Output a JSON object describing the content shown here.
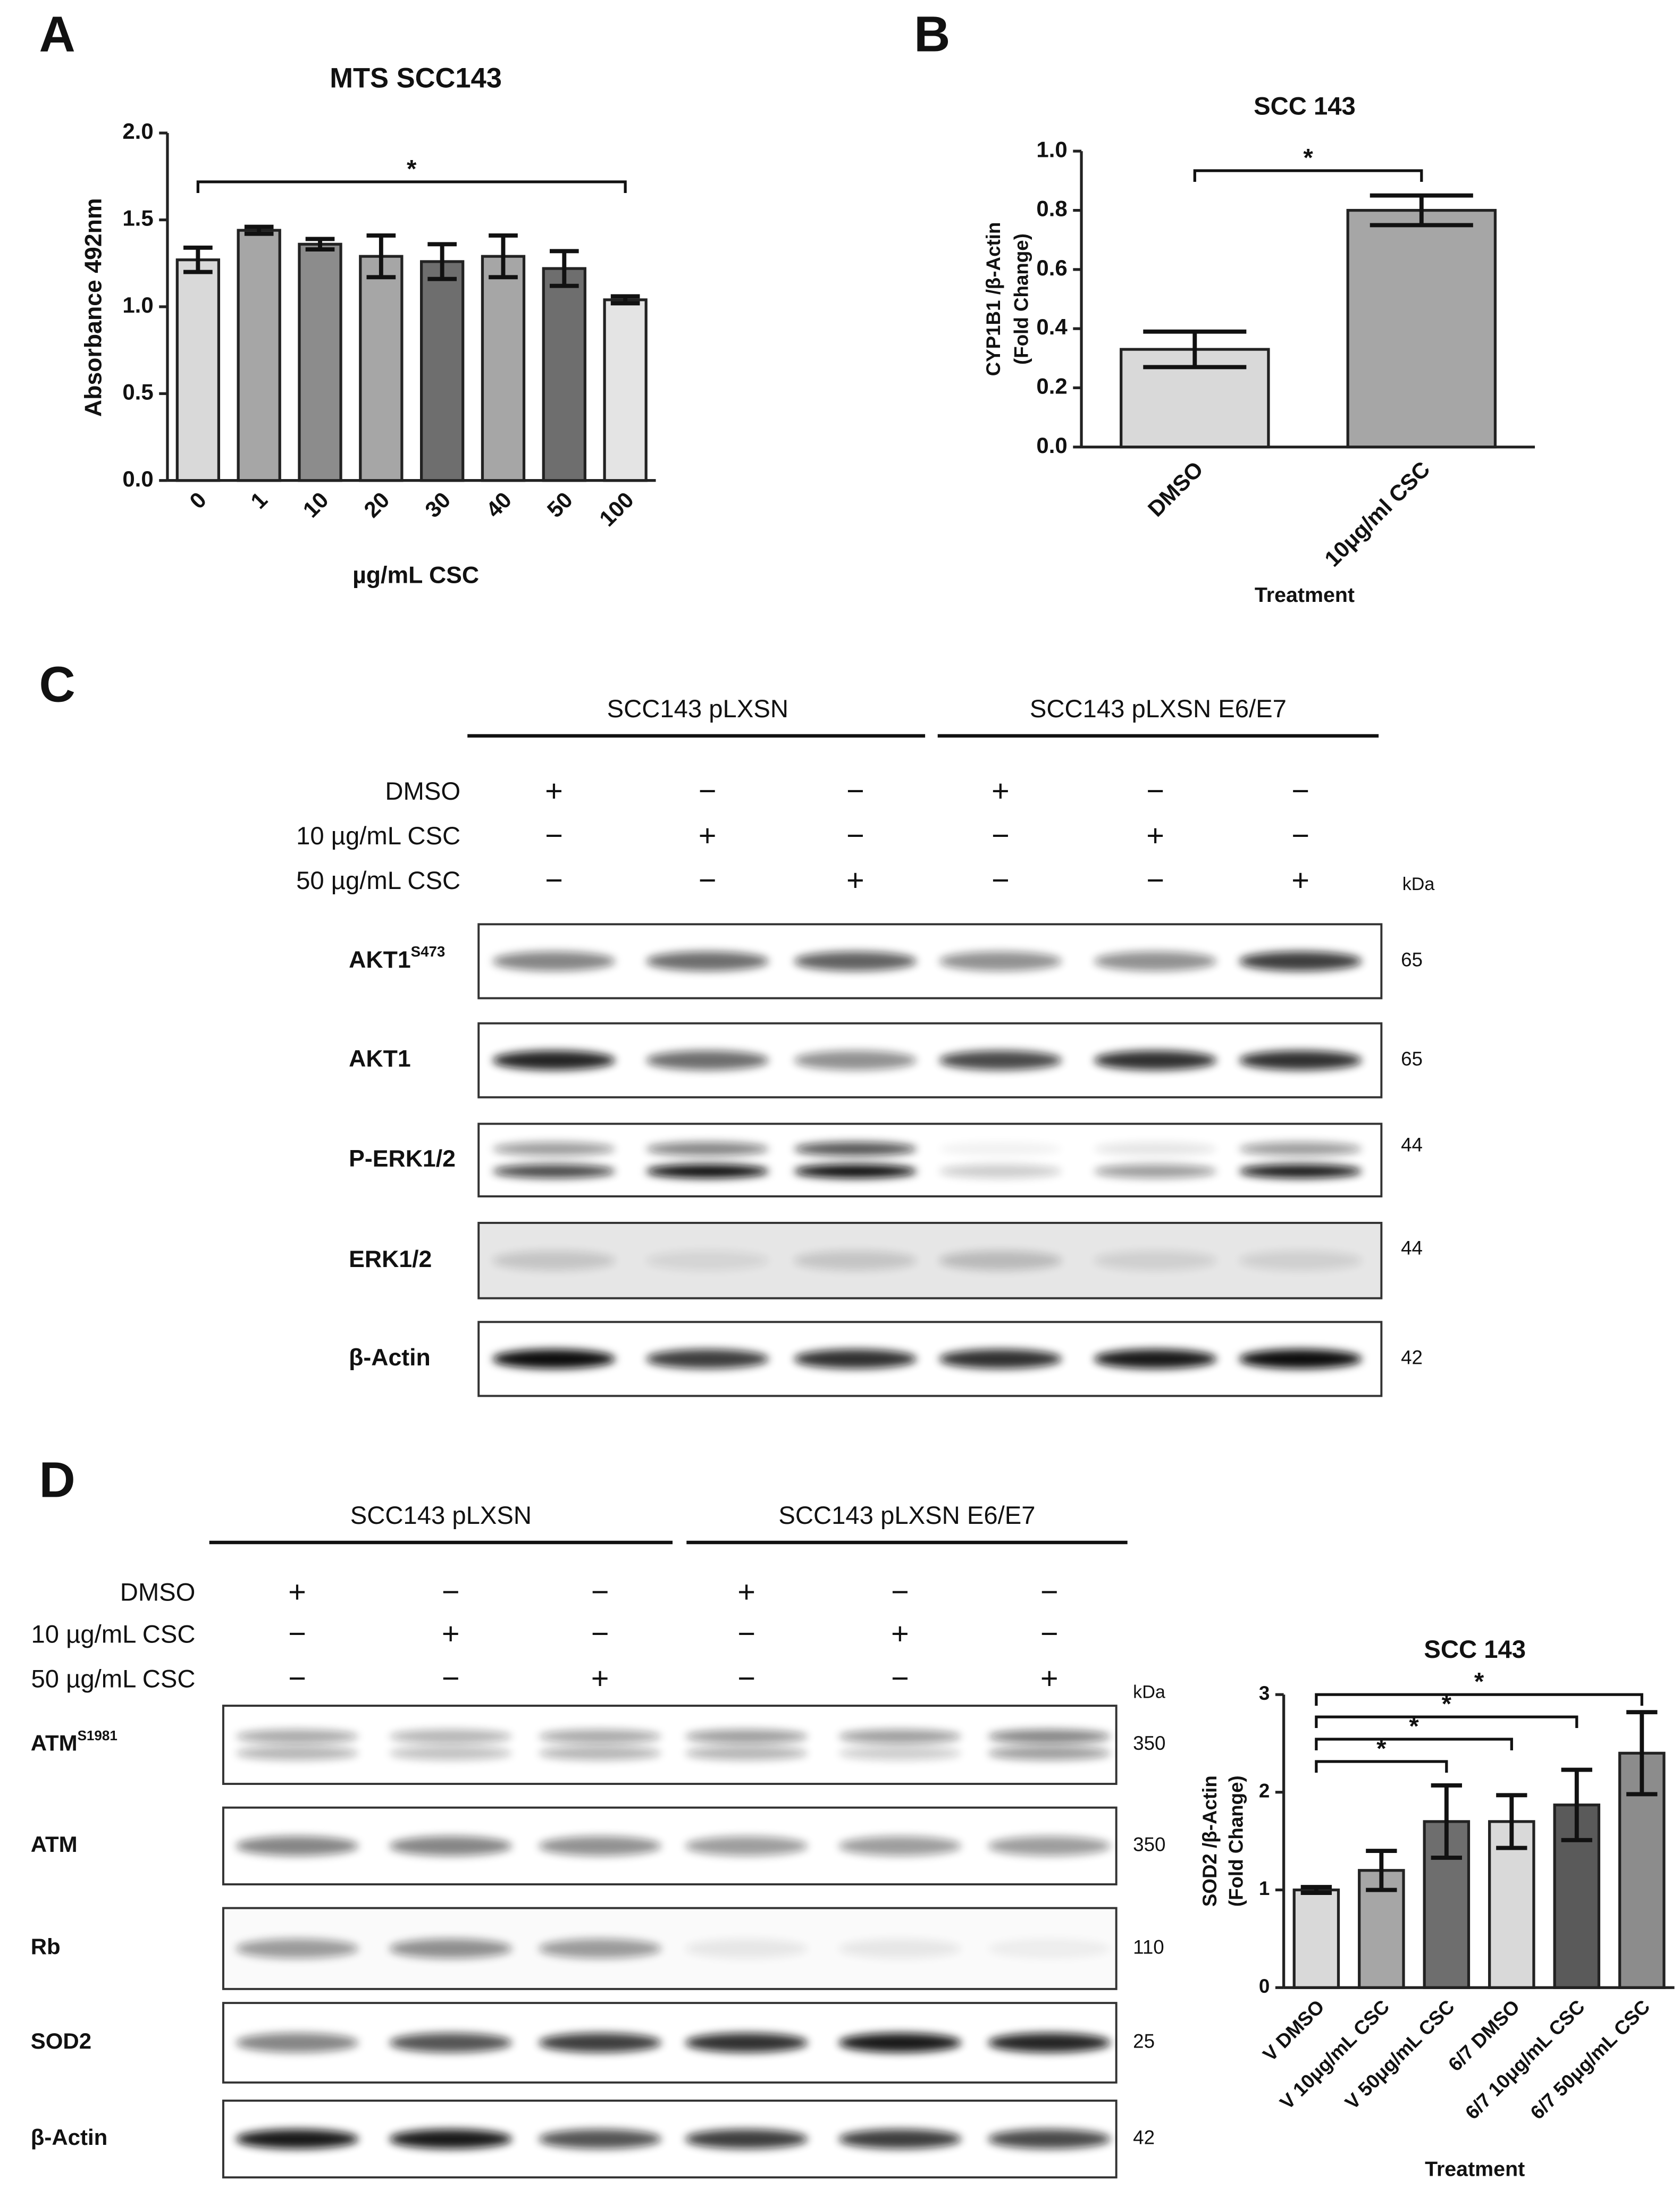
{
  "panel_labels": [
    "A",
    "B",
    "C",
    "D"
  ],
  "chart_data": [
    {
      "type": "bar",
      "title": "MTS SCC143",
      "ylabel": [
        "Absorbance 492nm"
      ],
      "xlabel": "µg/mL CSC",
      "categories": [
        "0",
        "1",
        "10",
        "20",
        "30",
        "40",
        "50",
        "100"
      ],
      "values": [
        1.27,
        1.44,
        1.36,
        1.29,
        1.26,
        1.29,
        1.22,
        1.04
      ],
      "errors": [
        0.07,
        0.02,
        0.03,
        0.12,
        0.1,
        0.12,
        0.1,
        0.02
      ],
      "colors": [
        "#d9d9d9",
        "#a6a6a6",
        "#8c8c8c",
        "#a6a6a6",
        "#6e6e6e",
        "#a6a6a6",
        "#6e6e6e",
        "#e4e4e4"
      ],
      "ylim": [
        0,
        2
      ],
      "yticks": [
        {
          "value": 0,
          "label": "0.0"
        },
        0.5,
        {
          "value": 1,
          "label": "1.0"
        },
        1.5,
        {
          "value": 2,
          "label": "2.0"
        }
      ],
      "significance": [
        "*"
      ]
    },
    {
      "type": "bar",
      "title": "SCC 143",
      "ylabel": [
        "CYP1B1 /β-Actin",
        "(Fold Change)"
      ],
      "xlabel": "Treatment",
      "categories": [
        "DMSO",
        "10μg/ml CSC"
      ],
      "values": [
        0.33,
        0.8
      ],
      "errors": [
        0.06,
        0.05
      ],
      "colors": [
        "#d9d9d9",
        "#a6a6a6"
      ],
      "ylim": [
        0,
        1
      ],
      "yticks": [
        {
          "value": 0,
          "label": "0.0"
        },
        0.2,
        0.4,
        0.6,
        0.8,
        {
          "value": 1,
          "label": "1.0"
        }
      ],
      "significance": [
        "*"
      ]
    },
    {
      "type": "bar",
      "title": "SCC 143",
      "ylabel": [
        "SOD2 /β-Actin",
        "(Fold Change)"
      ],
      "xlabel": "Treatment",
      "categories": [
        "V DMSO",
        "V 10μg/mL CSC",
        "V 50μg/mL CSC",
        "6/7 DMSO",
        "6/7 10μg/mL CSC",
        "6/7 50μg/mL CSC"
      ],
      "values": [
        1.0,
        1.2,
        1.7,
        1.7,
        1.87,
        2.4
      ],
      "errors": [
        0.03,
        0.2,
        0.37,
        0.27,
        0.36,
        0.42
      ],
      "colors": [
        "#d9d9d9",
        "#a6a6a6",
        "#6e6e6e",
        "#d9d9d9",
        "#5a5a5a",
        "#8c8c8c"
      ],
      "ylim": [
        0,
        3
      ],
      "yticks": [
        0,
        1,
        2,
        3
      ],
      "significance": [
        "*",
        "*",
        "*",
        "*"
      ]
    }
  ],
  "blot_c": {
    "groups": [
      "SCC143 pLXSN",
      "SCC143 pLXSN E6/E7"
    ],
    "treatments": [
      {
        "label": "DMSO",
        "signs": [
          "+",
          "−",
          "−",
          "+",
          "−",
          "−"
        ]
      },
      {
        "label": "10 µg/mL CSC",
        "signs": [
          "−",
          "+",
          "−",
          "−",
          "+",
          "−"
        ]
      },
      {
        "label": "50 µg/mL CSC",
        "signs": [
          "−",
          "−",
          "+",
          "−",
          "−",
          "+"
        ]
      }
    ],
    "kda_label": "kDa",
    "bands": [
      {
        "name": "AKT1",
        "sup": "S473",
        "kda": 65
      },
      {
        "name": "AKT1",
        "kda": 65
      },
      {
        "name": "P-ERK1/2",
        "kda": 44
      },
      {
        "name": "ERK1/2",
        "kda": 44
      },
      {
        "name": "β-Actin",
        "kda": 42
      }
    ]
  },
  "blot_d": {
    "groups": [
      "SCC143 pLXSN",
      "SCC143 pLXSN E6/E7"
    ],
    "treatments": [
      {
        "label": "DMSO",
        "signs": [
          "+",
          "−",
          "−",
          "+",
          "−",
          "−"
        ]
      },
      {
        "label": "10 µg/mL CSC",
        "signs": [
          "−",
          "+",
          "−",
          "−",
          "+",
          "−"
        ]
      },
      {
        "label": "50 µg/mL CSC",
        "signs": [
          "−",
          "−",
          "+",
          "−",
          "−",
          "+"
        ]
      }
    ],
    "kda_label": "kDa",
    "bands": [
      {
        "name": "ATM",
        "sup": "S1981",
        "kda": 350
      },
      {
        "name": "ATM",
        "kda": 350
      },
      {
        "name": "Rb",
        "kda": 110
      },
      {
        "name": "SOD2",
        "kda": 25
      },
      {
        "name": "β-Actin",
        "kda": 42
      }
    ]
  }
}
